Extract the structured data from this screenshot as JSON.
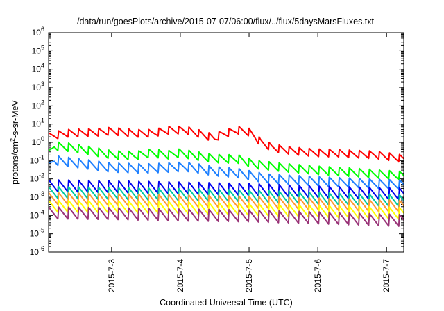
{
  "chart_data": {
    "type": "line",
    "title": "/data/run/goesPlots/archive/2015-07-07/06:00/flux/../flux/5daysMarsFluxes.txt",
    "xlabel": "Coordinated Universal Time (UTC)",
    "ylabel_base": "protons/cm",
    "ylabel_sup": "2",
    "ylabel_rest": "-s-sr-MeV",
    "x_range": [
      "2015-07-02T02:00",
      "2015-07-07T06:00"
    ],
    "x_ticks": [
      "2015-7-3",
      "2015-7-4",
      "2015-7-5",
      "2015-7-6",
      "2015-7-7"
    ],
    "y_scale": "log",
    "ylim": [
      1e-06,
      1000000.0
    ],
    "y_tick_exponents": [
      "-6",
      "-5",
      "-4",
      "-3",
      "-2",
      "-1",
      "0",
      "1",
      "2",
      "3",
      "4",
      "5",
      "6"
    ],
    "grid": false,
    "legend": "none",
    "sawtooth_period_hours": 3.5,
    "series": [
      {
        "color": "#ff0000",
        "ticks_start": 1,
        "ticks_end": 1,
        "amplitude": 0.45,
        "points": [
          [
            "2015-07-02T02:00",
            2.0
          ],
          [
            "2015-07-02T08:00",
            3.0
          ],
          [
            "2015-07-02T20:00",
            3.5
          ],
          [
            "2015-07-03T00:00",
            4.0
          ],
          [
            "2015-07-03T08:00",
            3.0
          ],
          [
            "2015-07-03T14:00",
            3.0
          ],
          [
            "2015-07-03T20:00",
            4.5
          ],
          [
            "2015-07-04T02:00",
            4.5
          ],
          [
            "2015-07-04T08:00",
            2.5
          ],
          [
            "2015-07-04T12:00",
            1.6
          ],
          [
            "2015-07-04T14:00",
            2.5
          ],
          [
            "2015-07-04T20:00",
            4.5
          ],
          [
            "2015-07-05T00:00",
            3.5
          ],
          [
            "2015-07-05T02:00",
            2.0
          ],
          [
            "2015-07-05T04:00",
            1.0
          ],
          [
            "2015-07-05T08:00",
            0.5
          ],
          [
            "2015-07-05T14:00",
            0.35
          ],
          [
            "2015-07-05T20:00",
            0.28
          ],
          [
            "2015-07-06T02:00",
            0.25
          ],
          [
            "2015-07-06T06:00",
            0.25
          ],
          [
            "2015-07-06T12:00",
            0.22
          ],
          [
            "2015-07-06T20:00",
            0.2
          ],
          [
            "2015-07-07T02:00",
            0.15
          ],
          [
            "2015-07-07T06:00",
            0.12
          ]
        ]
      },
      {
        "color": "#00ff00",
        "ticks_start": 1,
        "ticks_end": 1,
        "amplitude": 0.5,
        "points": [
          [
            "2015-07-02T02:00",
            0.2
          ],
          [
            "2015-07-02T04:00",
            0.6
          ],
          [
            "2015-07-02T10:00",
            0.5
          ],
          [
            "2015-07-02T18:00",
            0.3
          ],
          [
            "2015-07-03T00:00",
            0.2
          ],
          [
            "2015-07-03T08:00",
            0.18
          ],
          [
            "2015-07-03T14:00",
            0.25
          ],
          [
            "2015-07-03T20:00",
            0.2
          ],
          [
            "2015-07-04T00:00",
            0.25
          ],
          [
            "2015-07-04T08:00",
            0.15
          ],
          [
            "2015-07-04T14:00",
            0.12
          ],
          [
            "2015-07-04T20:00",
            0.12
          ],
          [
            "2015-07-05T02:00",
            0.06
          ],
          [
            "2015-07-05T12:00",
            0.04
          ],
          [
            "2015-07-06T00:00",
            0.028
          ],
          [
            "2015-07-06T12:00",
            0.022
          ],
          [
            "2015-07-07T06:00",
            0.014
          ]
        ]
      },
      {
        "color": "#1e80ff",
        "ticks_start": 1,
        "ticks_end": 1,
        "amplitude": 0.55,
        "points": [
          [
            "2015-07-02T02:00",
            0.04
          ],
          [
            "2015-07-02T04:00",
            0.1
          ],
          [
            "2015-07-02T12:00",
            0.07
          ],
          [
            "2015-07-03T00:00",
            0.04
          ],
          [
            "2015-07-03T12:00",
            0.035
          ],
          [
            "2015-07-03T20:00",
            0.04
          ],
          [
            "2015-07-04T02:00",
            0.045
          ],
          [
            "2015-07-04T12:00",
            0.025
          ],
          [
            "2015-07-04T20:00",
            0.02
          ],
          [
            "2015-07-05T06:00",
            0.01
          ],
          [
            "2015-07-06T00:00",
            0.007
          ],
          [
            "2015-07-07T06:00",
            0.0045
          ]
        ]
      },
      {
        "color": "#0000ee",
        "ticks_start": 1,
        "ticks_end": 1,
        "amplitude": 0.7,
        "points": [
          [
            "2015-07-02T02:00",
            0.004
          ],
          [
            "2015-07-03T00:00",
            0.0035
          ],
          [
            "2015-07-04T00:00",
            0.003
          ],
          [
            "2015-07-05T00:00",
            0.0025
          ],
          [
            "2015-07-06T00:00",
            0.0018
          ],
          [
            "2015-07-07T06:00",
            0.0014
          ]
        ]
      },
      {
        "color": "#00c8a0",
        "ticks_start": 1,
        "ticks_end": 1,
        "amplitude": 0.7,
        "points": [
          [
            "2015-07-02T02:00",
            0.0017
          ],
          [
            "2015-07-03T00:00",
            0.0015
          ],
          [
            "2015-07-04T00:00",
            0.0013
          ],
          [
            "2015-07-05T00:00",
            0.0011
          ],
          [
            "2015-07-06T00:00",
            0.0008
          ],
          [
            "2015-07-07T06:00",
            0.0006
          ]
        ]
      },
      {
        "color": "#ff9933",
        "ticks_start": 1,
        "ticks_end": 1,
        "amplitude": 0.7,
        "points": [
          [
            "2015-07-02T02:00",
            0.0008
          ],
          [
            "2015-07-03T00:00",
            0.0007
          ],
          [
            "2015-07-04T00:00",
            0.0006
          ],
          [
            "2015-07-05T00:00",
            0.0005
          ],
          [
            "2015-07-06T00:00",
            0.0004
          ],
          [
            "2015-07-07T06:00",
            0.0003
          ]
        ]
      },
      {
        "color": "#ffff00",
        "ticks_start": 1,
        "ticks_end": 1,
        "amplitude": 0.7,
        "points": [
          [
            "2015-07-02T02:00",
            0.0003
          ],
          [
            "2015-07-03T00:00",
            0.00028
          ],
          [
            "2015-07-04T00:00",
            0.00025
          ],
          [
            "2015-07-05T00:00",
            0.0002
          ],
          [
            "2015-07-06T00:00",
            0.00016
          ],
          [
            "2015-07-07T06:00",
            0.00012
          ]
        ]
      },
      {
        "color": "#993377",
        "ticks_start": 1,
        "ticks_end": 1,
        "amplitude": 0.7,
        "points": [
          [
            "2015-07-02T02:00",
            0.00013
          ],
          [
            "2015-07-03T00:00",
            0.00012
          ],
          [
            "2015-07-04T00:00",
            0.0001
          ],
          [
            "2015-07-05T00:00",
            9e-05
          ],
          [
            "2015-07-06T00:00",
            7e-05
          ],
          [
            "2015-07-07T06:00",
            5e-05
          ]
        ]
      }
    ]
  }
}
